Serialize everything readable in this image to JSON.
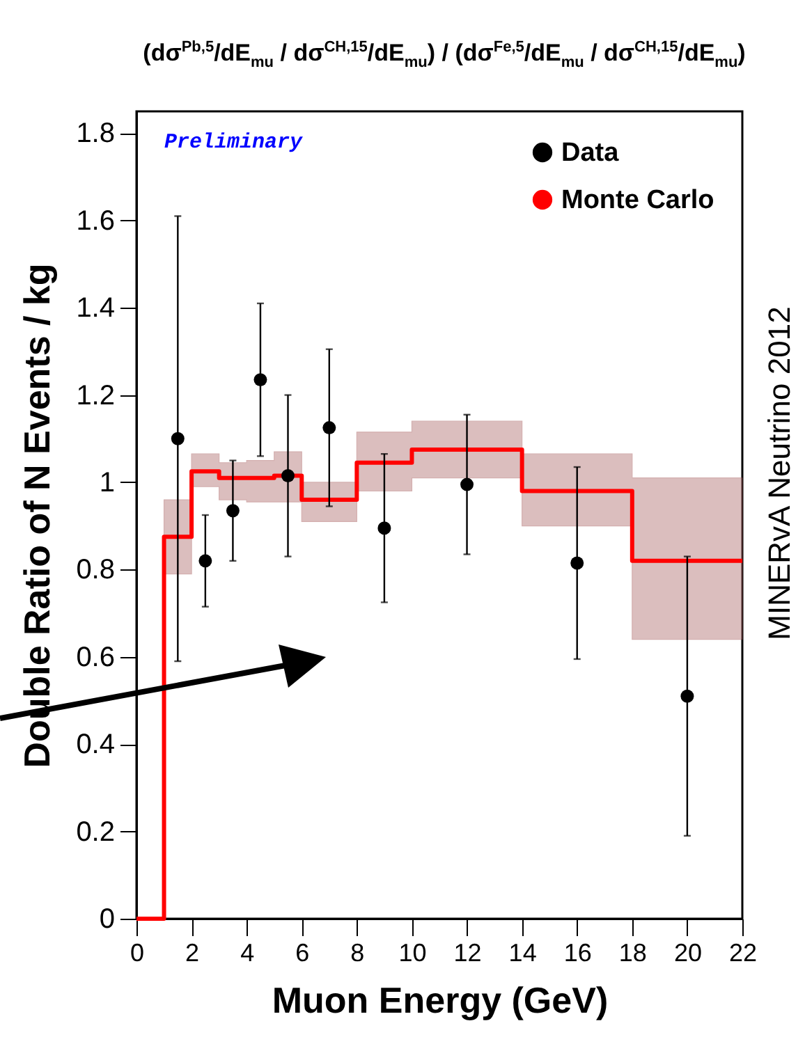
{
  "chart_data": {
    "type": "scatter",
    "title": "(dσ$^{Pb,5}$/dE$_{mu}$ / dσ$^{CH,15}$/dE$_{mu}$) / (dσ$^{Fe,5}$/dE$_{mu}$ / dσ$^{CH,15}$/dE$_{mu}$)",
    "xlabel": "Muon Energy (GeV)",
    "ylabel": "Double Ratio of N Events / kg",
    "annotations": [
      "Preliminary",
      "MINERvA Neutrino 2012"
    ],
    "xlim": [
      0,
      22
    ],
    "xticks": [
      0,
      2,
      4,
      6,
      8,
      10,
      12,
      14,
      16,
      18,
      20,
      22
    ],
    "ylim": [
      0,
      1.85
    ],
    "yticks": [
      0,
      0.2,
      0.4,
      0.6,
      0.8,
      1,
      1.2,
      1.4,
      1.6,
      1.8
    ],
    "grid": false,
    "legend": "top right",
    "series": [
      {
        "name": "Data",
        "color": "#000000",
        "marker": "circle",
        "x": [
          1.5,
          2.5,
          3.5,
          4.5,
          5.5,
          7,
          9,
          12,
          16,
          20
        ],
        "values": [
          1.1,
          0.82,
          0.935,
          1.235,
          1.015,
          1.125,
          0.895,
          0.995,
          0.815,
          0.51
        ],
        "errors": [
          0.51,
          0.105,
          0.115,
          0.175,
          0.185,
          0.18,
          0.17,
          0.16,
          0.22,
          0.32
        ]
      },
      {
        "name": "Monte Carlo",
        "type": "step",
        "color": "#ff0000",
        "line_style": "solid",
        "x": [
          0,
          1,
          2,
          3,
          4,
          5,
          6,
          8,
          10,
          14,
          18,
          22
        ],
        "values": [
          0,
          0.875,
          1.025,
          1.01,
          1.01,
          1.015,
          0.96,
          1.045,
          1.075,
          0.98,
          0.82,
          0.82
        ],
        "lower": [
          0,
          0.79,
          0.99,
          0.96,
          0.955,
          0.955,
          0.91,
          0.98,
          1.01,
          0.9,
          0.64,
          0.64
        ],
        "upper": [
          0,
          0.96,
          1.065,
          1.045,
          1.05,
          1.07,
          1.0,
          1.115,
          1.14,
          1.065,
          1.01,
          1.01
        ]
      }
    ]
  }
}
